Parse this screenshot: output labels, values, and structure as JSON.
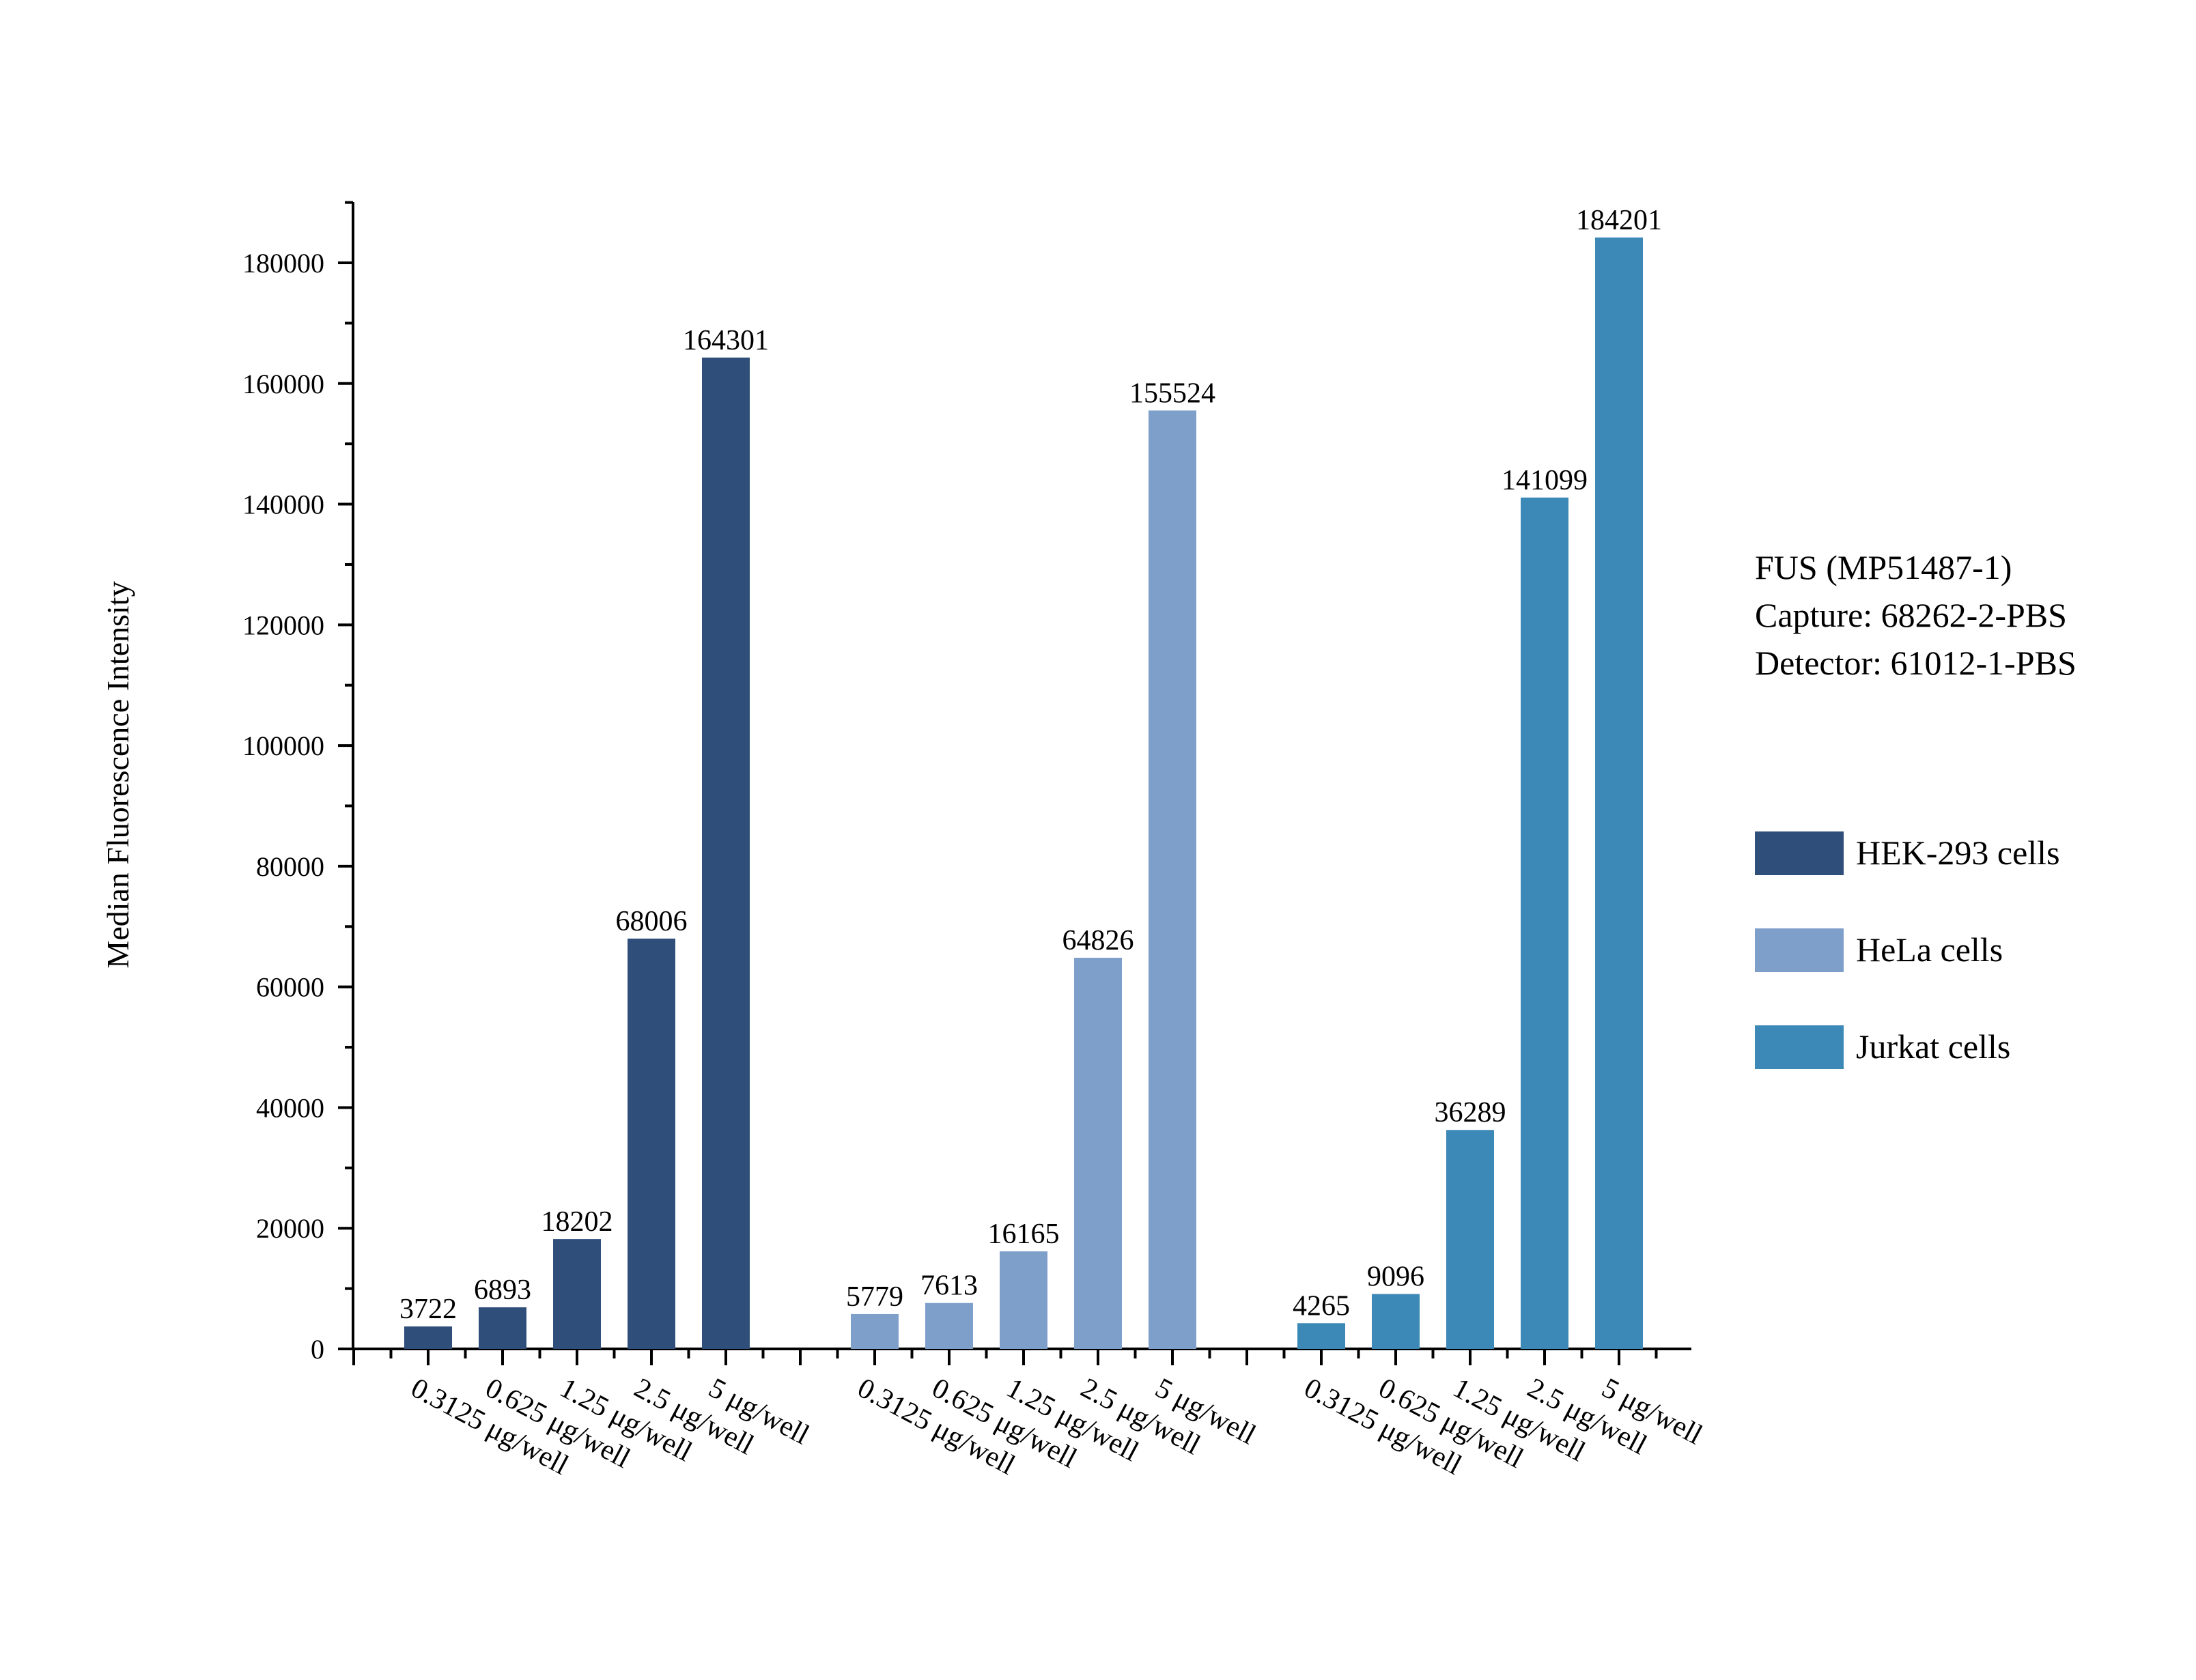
{
  "chart_data": {
    "type": "bar",
    "ylabel": "Median Fluorescence Intensity",
    "ylim": [
      0,
      190000
    ],
    "yticks": [
      0,
      20000,
      40000,
      60000,
      80000,
      100000,
      120000,
      140000,
      160000,
      180000
    ],
    "categories": [
      "0.3125 μg/well",
      "0.625 μg/well",
      "1.25 μg/well",
      "2.5 μg/well",
      "5 μg/well"
    ],
    "series": [
      {
        "name": "HEK-293 cells",
        "color": "#2f4f7a",
        "values": [
          3722,
          6893,
          18202,
          68006,
          164301
        ]
      },
      {
        "name": "HeLa cells",
        "color": "#7f9fcb",
        "values": [
          5779,
          7613,
          16165,
          64826,
          155524
        ]
      },
      {
        "name": "Jurkat cells",
        "color": "#3c88b7",
        "values": [
          4265,
          9096,
          36289,
          141099,
          184201
        ]
      }
    ],
    "annotation": [
      "FUS (MP51487-1)",
      "Capture: 68262-2-PBS",
      "Detector: 61012-1-PBS"
    ],
    "legend_position": "right",
    "grid": false
  }
}
